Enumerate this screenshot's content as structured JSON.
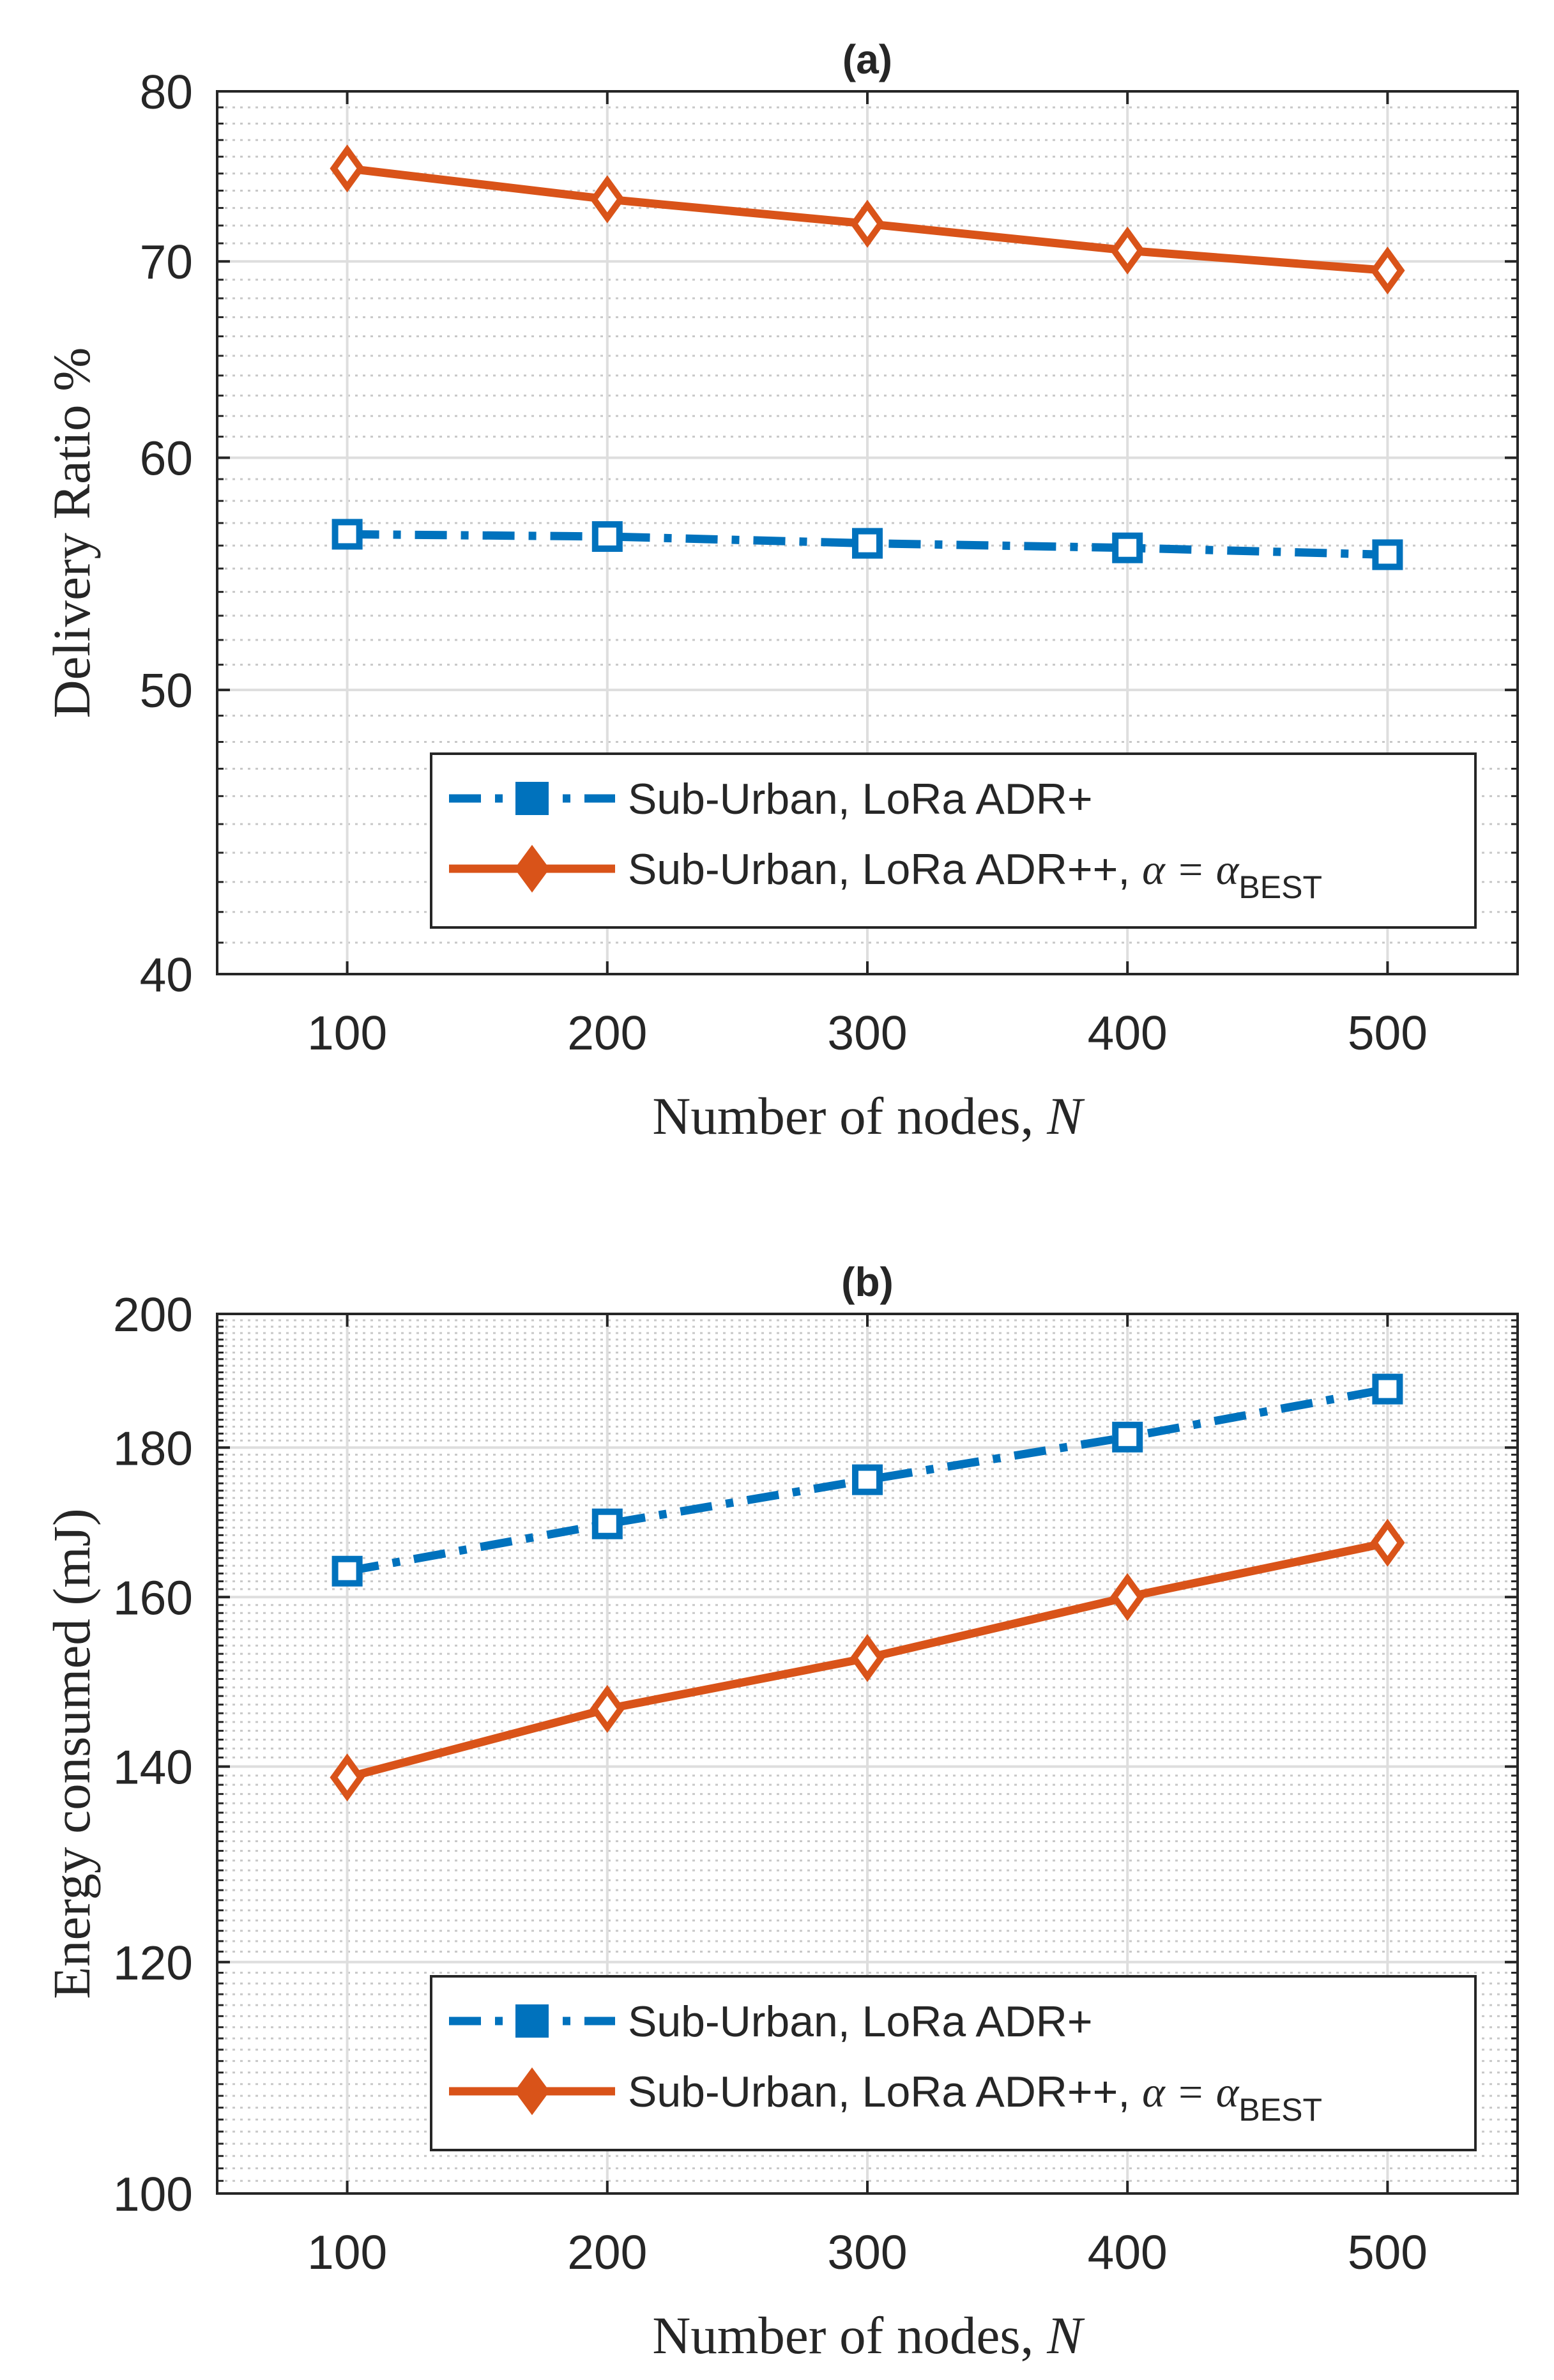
{
  "chart_data": [
    {
      "type": "line",
      "title": "(a)",
      "xlabel": "Number of nodes, ",
      "xlabel_var": "N",
      "ylabel": "Delivery Ratio %",
      "ylim": [
        40,
        80
      ],
      "yscale": "log",
      "xlim": [
        50,
        550
      ],
      "x": [
        100,
        200,
        300,
        400,
        500
      ],
      "x_ticks": [
        100,
        200,
        300,
        400,
        500
      ],
      "y_ticks": [
        40,
        50,
        60,
        70,
        80
      ],
      "y_minor_ticks": [
        45,
        55,
        65,
        75
      ],
      "grid": true,
      "legend_position": "bottom-right",
      "series": [
        {
          "name": "Sub-Urban, LoRa ADR+",
          "legend_suffix": "",
          "color": "#0072BD",
          "marker": "square",
          "line": "dashdot",
          "values": [
            56.5,
            56.4,
            56.1,
            55.9,
            55.6
          ]
        },
        {
          "name": "Sub-Urban, LoRa ADR++, ",
          "legend_suffix": "α = α",
          "legend_sub": "BEST",
          "color": "#D95319",
          "marker": "diamond",
          "line": "solid",
          "values": [
            75.3,
            73.5,
            72.1,
            70.6,
            69.5
          ]
        }
      ]
    },
    {
      "type": "line",
      "title": "(b)",
      "xlabel": "Number of nodes, ",
      "xlabel_var": "N",
      "ylabel": "Energy consumed (mJ)",
      "ylim": [
        100,
        200
      ],
      "yscale": "log",
      "xlim": [
        50,
        550
      ],
      "x": [
        100,
        200,
        300,
        400,
        500
      ],
      "x_ticks": [
        100,
        200,
        300,
        400,
        500
      ],
      "y_ticks": [
        100,
        120,
        140,
        160,
        180,
        200
      ],
      "y_minor_ticks": [
        110,
        130,
        150,
        170,
        190
      ],
      "grid": true,
      "legend_position": "bottom-right",
      "series": [
        {
          "name": "Sub-Urban, LoRa ADR+",
          "legend_suffix": "",
          "color": "#0072BD",
          "marker": "square",
          "line": "dashdot",
          "values": [
            163.3,
            169.5,
            175.5,
            181.5,
            188.5
          ]
        },
        {
          "name": "Sub-Urban, LoRa ADR++, ",
          "legend_suffix": "α = α",
          "legend_sub": "BEST",
          "color": "#D95319",
          "marker": "diamond",
          "line": "solid",
          "values": [
            138.8,
            146.5,
            152.5,
            160.0,
            167.0
          ]
        }
      ]
    }
  ]
}
